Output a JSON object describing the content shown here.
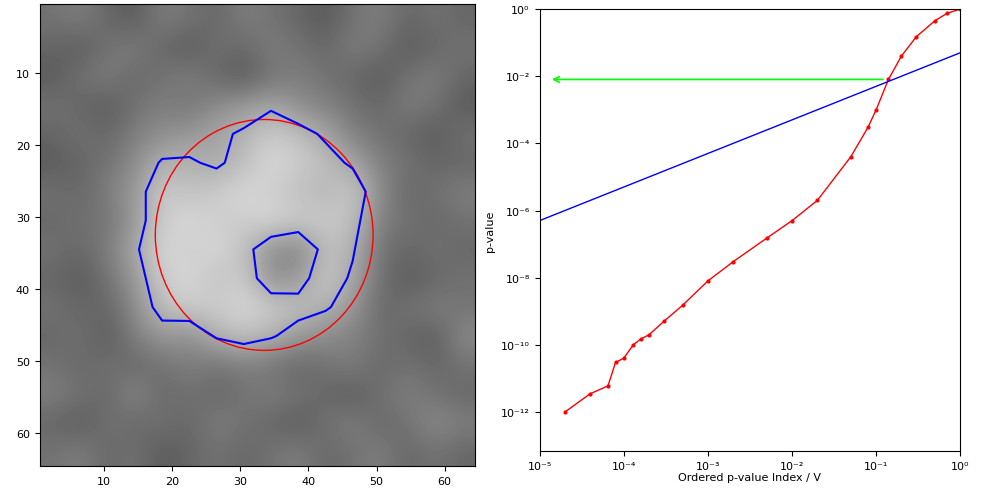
{
  "chart_data": [
    {
      "type": "image",
      "color": "gray",
      "color_range": [
        0,
        1
      ],
      "cells": [
        [
          0.45,
          0.5,
          0.4,
          0.35,
          0.5,
          0.45,
          0.4,
          0.5,
          0.45,
          0.4,
          0.35,
          0.45,
          0.5,
          0.4,
          0.45,
          0.4
        ],
        [
          0.4,
          0.35,
          0.45,
          0.5,
          0.4,
          0.35,
          0.45,
          0.4,
          0.5,
          0.45,
          0.4,
          0.5,
          0.45,
          0.35,
          0.4,
          0.45
        ],
        [
          0.35,
          0.45,
          0.5,
          0.4,
          0.45,
          0.5,
          0.4,
          0.35,
          0.45,
          0.5,
          0.45,
          0.4,
          0.35,
          0.45,
          0.5,
          0.4
        ],
        [
          0.45,
          0.4,
          0.35,
          0.45,
          0.5,
          0.45,
          0.55,
          0.6,
          0.65,
          0.55,
          0.5,
          0.45,
          0.4,
          0.5,
          0.45,
          0.35
        ],
        [
          0.4,
          0.45,
          0.4,
          0.5,
          0.55,
          0.6,
          0.65,
          0.7,
          0.8,
          0.75,
          0.65,
          0.5,
          0.45,
          0.4,
          0.35,
          0.45
        ],
        [
          0.35,
          0.4,
          0.45,
          0.55,
          0.7,
          0.7,
          0.65,
          0.75,
          0.85,
          0.8,
          0.75,
          0.65,
          0.5,
          0.45,
          0.4,
          0.4
        ],
        [
          0.45,
          0.4,
          0.5,
          0.6,
          0.8,
          0.75,
          0.8,
          0.85,
          0.8,
          0.75,
          0.7,
          0.8,
          0.55,
          0.4,
          0.45,
          0.5
        ],
        [
          0.4,
          0.45,
          0.45,
          0.6,
          0.8,
          0.85,
          0.8,
          0.8,
          0.85,
          0.8,
          0.8,
          0.75,
          0.5,
          0.45,
          0.4,
          0.45
        ],
        [
          0.45,
          0.4,
          0.5,
          0.65,
          0.85,
          0.8,
          0.85,
          0.75,
          0.55,
          0.5,
          0.75,
          0.7,
          0.45,
          0.4,
          0.45,
          0.4
        ],
        [
          0.4,
          0.35,
          0.45,
          0.6,
          0.8,
          0.85,
          0.75,
          0.8,
          0.55,
          0.6,
          0.8,
          0.65,
          0.45,
          0.35,
          0.4,
          0.45
        ],
        [
          0.45,
          0.4,
          0.4,
          0.55,
          0.75,
          0.8,
          0.8,
          0.85,
          0.8,
          0.75,
          0.7,
          0.6,
          0.4,
          0.45,
          0.5,
          0.45
        ],
        [
          0.4,
          0.45,
          0.35,
          0.5,
          0.6,
          0.55,
          0.7,
          0.75,
          0.7,
          0.6,
          0.55,
          0.5,
          0.45,
          0.4,
          0.35,
          0.55
        ],
        [
          0.45,
          0.4,
          0.45,
          0.4,
          0.45,
          0.5,
          0.45,
          0.5,
          0.45,
          0.4,
          0.45,
          0.5,
          0.4,
          0.45,
          0.4,
          0.45
        ],
        [
          0.5,
          0.45,
          0.4,
          0.55,
          0.4,
          0.45,
          0.4,
          0.45,
          0.5,
          0.45,
          0.4,
          0.35,
          0.45,
          0.5,
          0.45,
          0.4
        ],
        [
          0.4,
          0.35,
          0.45,
          0.4,
          0.45,
          0.4,
          0.5,
          0.45,
          0.4,
          0.35,
          0.45,
          0.5,
          0.4,
          0.45,
          0.55,
          0.5
        ],
        [
          0.45,
          0.5,
          0.4,
          0.45,
          0.35,
          0.4,
          0.45,
          0.4,
          0.45,
          0.5,
          0.4,
          0.45,
          0.5,
          0.4,
          0.45,
          0.4
        ]
      ],
      "contour": {
        "level": 0.68,
        "color": "#0000ff"
      },
      "circle": {
        "center": [
          33.5,
          32.5
        ],
        "radius": 16,
        "color": "#ff0000"
      },
      "xlim": [
        0.5,
        64.5
      ],
      "ylim": [
        64.5,
        0.5
      ],
      "xticks": [
        10,
        20,
        30,
        40,
        50,
        60
      ],
      "yticks": [
        10,
        20,
        30,
        40,
        50,
        60
      ]
    },
    {
      "type": "line",
      "log": true,
      "x_label": "Ordered p-value Index / V",
      "y_label": "p-value",
      "xlim": [
        1e-05,
        1
      ],
      "ylim": [
        7e-14,
        1
      ],
      "xticks": [
        {
          "value": 1e-05,
          "label": "10⁻⁵"
        },
        {
          "value": 0.0001,
          "label": "10⁻⁴"
        },
        {
          "value": 0.001,
          "label": "10⁻³"
        },
        {
          "value": 0.01,
          "label": "10⁻²"
        },
        {
          "value": 0.1,
          "label": "10⁻¹"
        },
        {
          "value": 1,
          "label": "10⁰"
        }
      ],
      "yticks": [
        {
          "value": 1e-12,
          "label": "10⁻¹²"
        },
        {
          "value": 1e-10,
          "label": "10⁻¹⁰"
        },
        {
          "value": 1e-08,
          "label": "10⁻⁸"
        },
        {
          "value": 1e-06,
          "label": "10⁻⁶"
        },
        {
          "value": 0.0001,
          "label": "10⁻⁴"
        },
        {
          "value": 0.01,
          "label": "10⁻²"
        },
        {
          "value": 1,
          "label": "10⁰"
        }
      ],
      "series": [
        {
          "color": "#ff0000",
          "marker": "dot",
          "line_style": "solid",
          "x": [
            2e-05,
            4e-05,
            6.5e-05,
            8e-05,
            0.0001,
            0.00013,
            0.00016,
            0.0002,
            0.0003,
            0.0005,
            0.001,
            0.002,
            0.005,
            0.01,
            0.02,
            0.05,
            0.08,
            0.1,
            0.14,
            0.2,
            0.3,
            0.5,
            0.7,
            1
          ],
          "values": [
            1e-12,
            3.5e-12,
            6e-12,
            3e-11,
            4e-11,
            1e-10,
            1.5e-10,
            2e-10,
            5e-10,
            1.5e-09,
            8e-09,
            3e-08,
            1.5e-07,
            5e-07,
            2e-06,
            4e-05,
            0.0003,
            0.001,
            0.008,
            0.04,
            0.15,
            0.45,
            0.75,
            1
          ]
        },
        {
          "color": "#0000ff",
          "line_style": "solid",
          "x": [
            1e-05,
            1
          ],
          "values": [
            5e-07,
            0.05
          ]
        }
      ],
      "arrow": {
        "from": [
          0.13,
          0.008
        ],
        "to": [
          1.3e-05,
          0.008
        ],
        "color": "#00ff00"
      }
    }
  ]
}
